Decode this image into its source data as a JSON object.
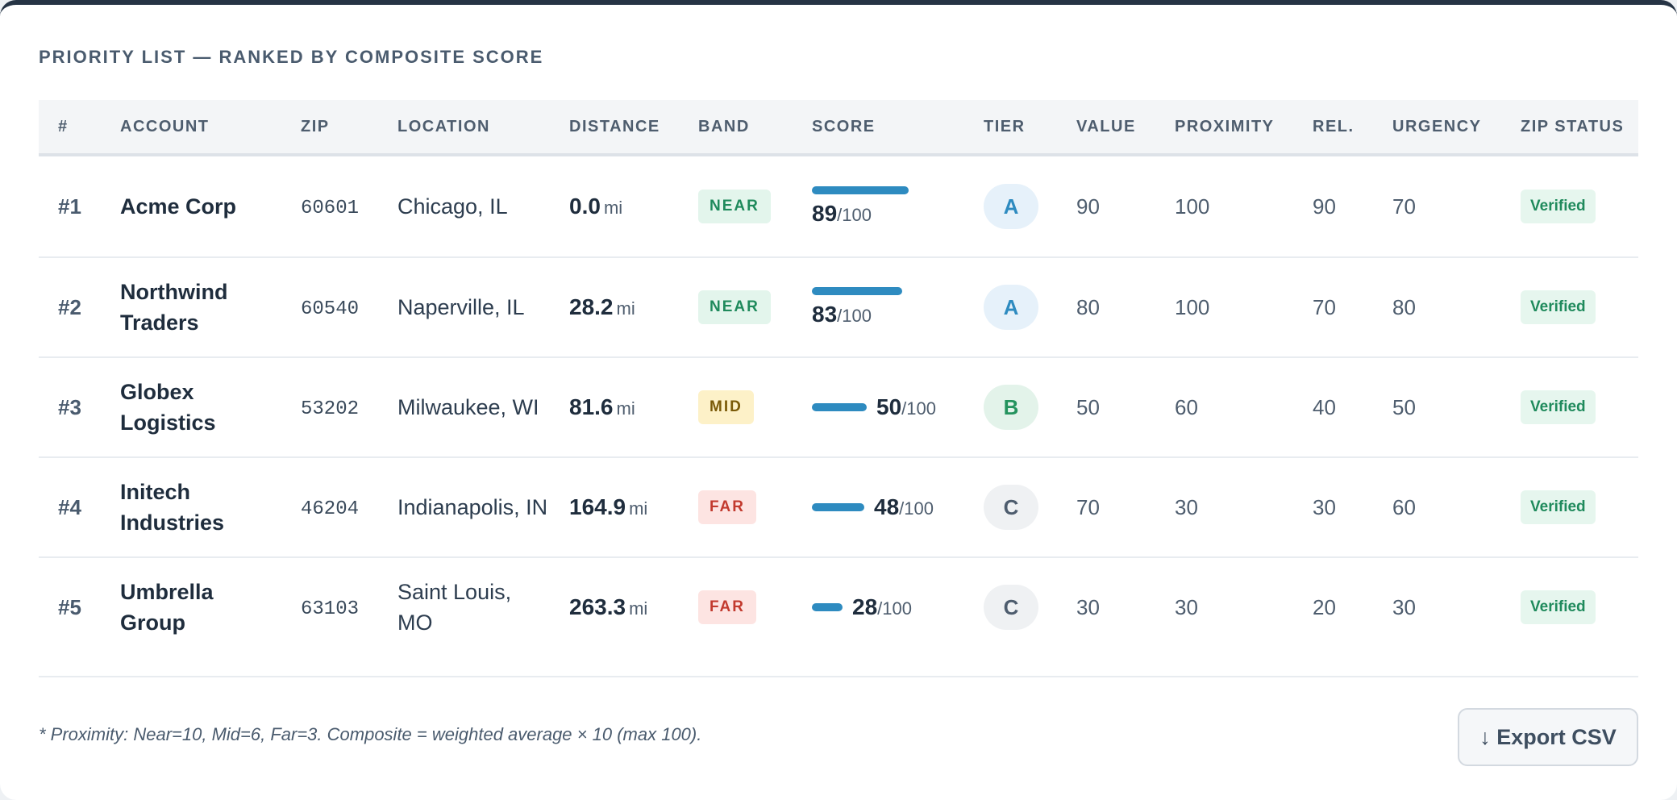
{
  "title": "PRIORITY LIST — RANKED BY COMPOSITE SCORE",
  "colors": {
    "bar": "#2e8bc0",
    "near_bg": "#e3f5ec",
    "near_fg": "#1f8a5c",
    "mid_bg": "#fdf1c8",
    "mid_fg": "#7a5a08",
    "far_bg": "#fde4e2",
    "far_fg": "#c23a2e",
    "tierA_bg": "#e6f1fa",
    "tierA_fg": "#2e8bc0",
    "tierB_bg": "#e3f3ea",
    "tierB_fg": "#24935e",
    "tierC_bg": "#eff1f3",
    "tierC_fg": "#4e5d6e"
  },
  "columns": [
    "#",
    "ACCOUNT",
    "ZIP",
    "LOCATION",
    "DISTANCE",
    "BAND",
    "SCORE",
    "TIER",
    "VALUE",
    "PROXIMITY",
    "REL.",
    "URGENCY",
    "ZIP STATUS"
  ],
  "rows": [
    {
      "rank": "#1",
      "account": "Acme Corp",
      "zip": "60601",
      "location": "Chicago, IL",
      "distance": "0.0",
      "unit": "mi",
      "band": "NEAR",
      "score": 89,
      "score_den": "/100",
      "tier": "A",
      "value": "90",
      "proximity": "100",
      "rel": "90",
      "urgency": "70",
      "status": "Verified"
    },
    {
      "rank": "#2",
      "account": "Northwind Traders",
      "zip": "60540",
      "location": "Naperville, IL",
      "distance": "28.2",
      "unit": "mi",
      "band": "NEAR",
      "score": 83,
      "score_den": "/100",
      "tier": "A",
      "value": "80",
      "proximity": "100",
      "rel": "70",
      "urgency": "80",
      "status": "Verified"
    },
    {
      "rank": "#3",
      "account": "Globex Logistics",
      "zip": "53202",
      "location": "Milwaukee, WI",
      "distance": "81.6",
      "unit": "mi",
      "band": "MID",
      "score": 50,
      "score_den": "/100",
      "tier": "B",
      "value": "50",
      "proximity": "60",
      "rel": "40",
      "urgency": "50",
      "status": "Verified"
    },
    {
      "rank": "#4",
      "account": "Initech Industries",
      "zip": "46204",
      "location": "Indianapolis, IN",
      "distance": "164.9",
      "unit": "mi",
      "band": "FAR",
      "score": 48,
      "score_den": "/100",
      "tier": "C",
      "value": "70",
      "proximity": "30",
      "rel": "30",
      "urgency": "60",
      "status": "Verified"
    },
    {
      "rank": "#5",
      "account": "Umbrella Group",
      "zip": "63103",
      "location": "Saint Louis, MO",
      "distance": "263.3",
      "unit": "mi",
      "band": "FAR",
      "score": 28,
      "score_den": "/100",
      "tier": "C",
      "value": "30",
      "proximity": "30",
      "rel": "20",
      "urgency": "30",
      "status": "Verified"
    }
  ],
  "footnote": "* Proximity: Near=10, Mid=6, Far=3. Composite = weighted average × 10 (max 100).",
  "export_label": "↓ Export CSV"
}
